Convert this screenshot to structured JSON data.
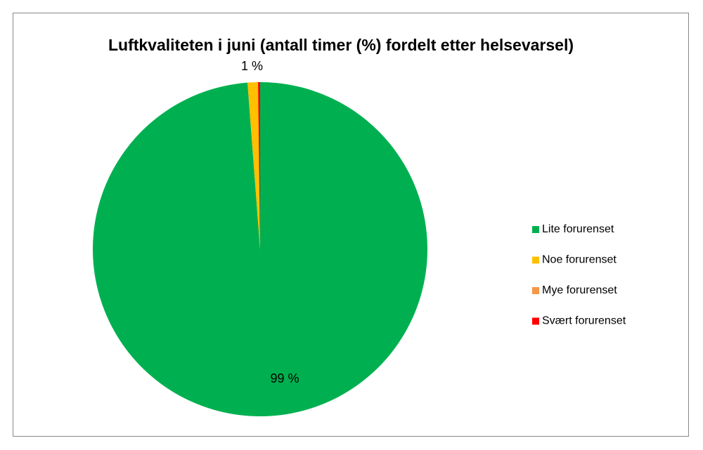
{
  "chart_data": {
    "type": "pie",
    "title": "Luftkvaliteten i juni (antall timer (%) fordelt etter helsevarsel)",
    "categories": [
      "Lite forurenset",
      "Noe forurenset",
      "Mye forurenset",
      "Svært forurenset"
    ],
    "values": [
      98.8,
      1.0,
      0,
      0.2
    ],
    "value_labels": [
      "99 %",
      "1 %",
      null,
      null
    ],
    "colors": [
      "#00b050",
      "#ffc000",
      "#f79646",
      "#ff0000"
    ],
    "legend": "right"
  }
}
